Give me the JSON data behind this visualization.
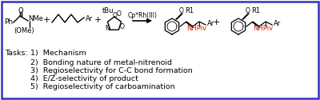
{
  "border_color": "#3333bb",
  "background_color": "#ffffff",
  "tasks_label": "Tasks:",
  "tasks": [
    "1)  Mechanism",
    "2)  Bonding nature of metal-nitrenoid",
    "3)  Regioselectivity for C-C bond formation",
    "4)  E/Z-selectivity of product",
    "5)  Regioselectivity of carboamination"
  ],
  "font_size_tasks": 6.8,
  "font_size_label": 6.8,
  "nhpiv_color": "#cc2200",
  "border_linewidth": 1.8
}
